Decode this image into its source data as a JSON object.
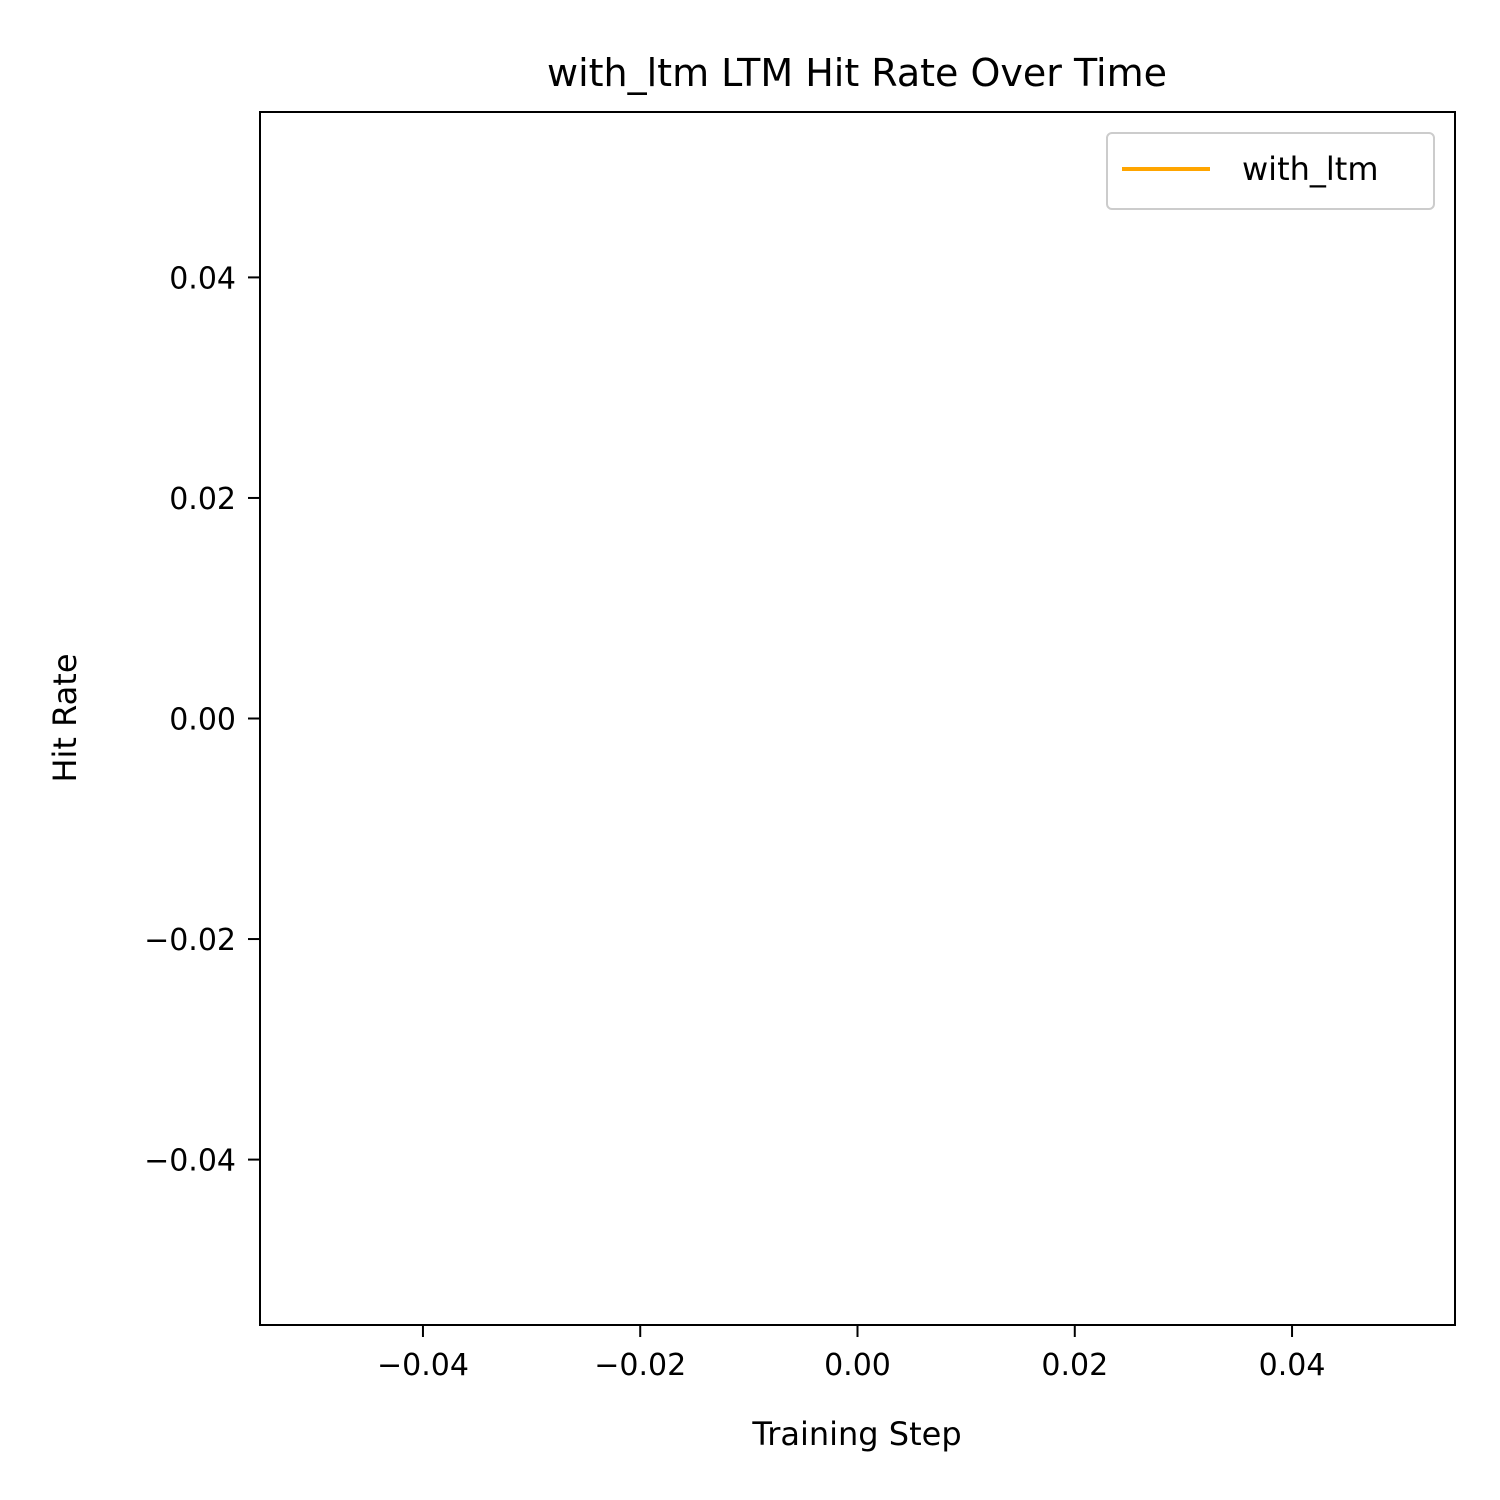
{
  "chart_data": {
    "type": "line",
    "title": "with_ltm LTM Hit Rate Over Time",
    "xlabel": "Training Step",
    "ylabel": "Hit Rate",
    "xlim": [
      -0.055,
      0.055
    ],
    "ylim": [
      -0.055,
      0.055
    ],
    "x_ticks": [
      -0.04,
      -0.02,
      0.0,
      0.02,
      0.04
    ],
    "y_ticks": [
      -0.04,
      -0.02,
      0.0,
      0.02,
      0.04
    ],
    "x_tick_labels": [
      "−0.04",
      "−0.02",
      "0.00",
      "0.02",
      "0.04"
    ],
    "y_tick_labels": [
      "−0.04",
      "−0.02",
      "0.00",
      "0.02",
      "0.04"
    ],
    "grid": false,
    "legend_position": "upper-right",
    "series": [
      {
        "name": "with_ltm",
        "color": "#ffa500",
        "x": [],
        "y": []
      }
    ]
  }
}
